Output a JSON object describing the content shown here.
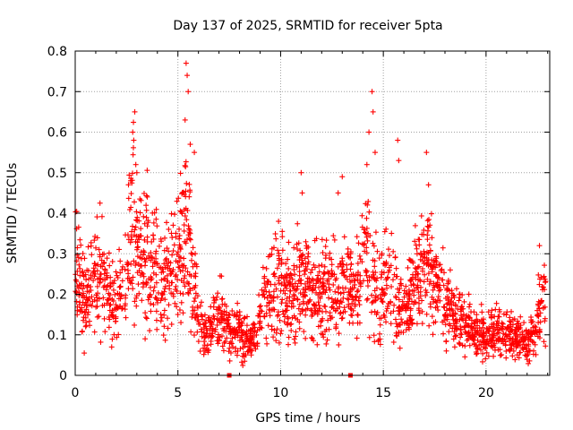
{
  "chart_data": {
    "type": "scatter",
    "title": "Day 137 of 2025, SRMTID for receiver 5pta",
    "xlabel": "GPS time / hours",
    "ylabel": "SRMTID / TECUs",
    "xlim": [
      0,
      23.1
    ],
    "ylim": [
      0,
      0.8
    ],
    "xticks": [
      0,
      5,
      10,
      15,
      20
    ],
    "yticks": [
      0,
      0.1,
      0.2,
      0.3,
      0.4,
      0.5,
      0.6,
      0.7,
      0.8
    ],
    "xtick_labels": [
      "0",
      "5",
      "10",
      "15",
      "20"
    ],
    "ytick_labels": [
      "0",
      "0.1",
      "0.2",
      "0.3",
      "0.4",
      "0.5",
      "0.6",
      "0.7",
      "0.8"
    ],
    "grid": true,
    "marker": "+",
    "color": "#ff0000",
    "series": [
      {
        "name": "SRMTID",
        "profile_x": [
          0,
          0.1,
          0.3,
          0.5,
          0.7,
          0.9,
          1.1,
          1.3,
          1.6,
          1.8,
          2.0,
          2.2,
          2.4,
          2.6,
          2.8,
          3.0,
          3.3,
          3.6,
          3.9,
          4.2,
          4.5,
          4.8,
          5.0,
          5.2,
          5.4,
          5.6,
          5.8,
          6.0,
          6.3,
          6.6,
          7.0,
          7.4,
          7.8,
          8.2,
          8.6,
          9.0,
          9.4,
          9.8,
          10.2,
          10.6,
          11.0,
          11.4,
          11.8,
          12.2,
          12.6,
          13.0,
          13.4,
          13.8,
          14.2,
          14.5,
          14.8,
          15.1,
          15.4,
          15.7,
          16.0,
          16.3,
          16.6,
          16.9,
          17.2,
          17.5,
          17.8,
          18.1,
          18.4,
          18.8,
          19.2,
          19.6,
          20.0,
          20.4,
          20.8,
          21.2,
          21.6,
          22.0,
          22.3,
          22.6,
          22.8
        ],
        "profile_y": [
          0.27,
          0.24,
          0.22,
          0.17,
          0.2,
          0.25,
          0.24,
          0.26,
          0.19,
          0.2,
          0.18,
          0.22,
          0.24,
          0.32,
          0.38,
          0.3,
          0.29,
          0.31,
          0.25,
          0.24,
          0.23,
          0.27,
          0.29,
          0.33,
          0.4,
          0.3,
          0.2,
          0.14,
          0.1,
          0.11,
          0.15,
          0.12,
          0.11,
          0.1,
          0.08,
          0.15,
          0.2,
          0.22,
          0.21,
          0.2,
          0.24,
          0.2,
          0.21,
          0.22,
          0.21,
          0.2,
          0.22,
          0.24,
          0.31,
          0.22,
          0.2,
          0.22,
          0.23,
          0.18,
          0.16,
          0.2,
          0.24,
          0.26,
          0.27,
          0.23,
          0.23,
          0.18,
          0.15,
          0.13,
          0.12,
          0.1,
          0.1,
          0.11,
          0.1,
          0.1,
          0.09,
          0.08,
          0.1,
          0.16,
          0.18
        ],
        "spikes_x": [
          2.8,
          2.9,
          2.85,
          2.95,
          3.0,
          2.7,
          5.4,
          5.45,
          5.5,
          5.35,
          5.6,
          5.8,
          14.3,
          14.45,
          14.5,
          14.6,
          14.2,
          15.7,
          15.75,
          17.1,
          17.2,
          11.0,
          11.05,
          9.9,
          12.8,
          13.0,
          22.6,
          7.5,
          13.4
        ],
        "spikes_y": [
          0.6,
          0.65,
          0.58,
          0.52,
          0.5,
          0.48,
          0.77,
          0.74,
          0.7,
          0.63,
          0.57,
          0.55,
          0.6,
          0.7,
          0.65,
          0.55,
          0.52,
          0.58,
          0.53,
          0.55,
          0.47,
          0.5,
          0.45,
          0.38,
          0.45,
          0.49,
          0.32,
          0.0,
          0.0
        ],
        "count": 2300
      }
    ]
  }
}
